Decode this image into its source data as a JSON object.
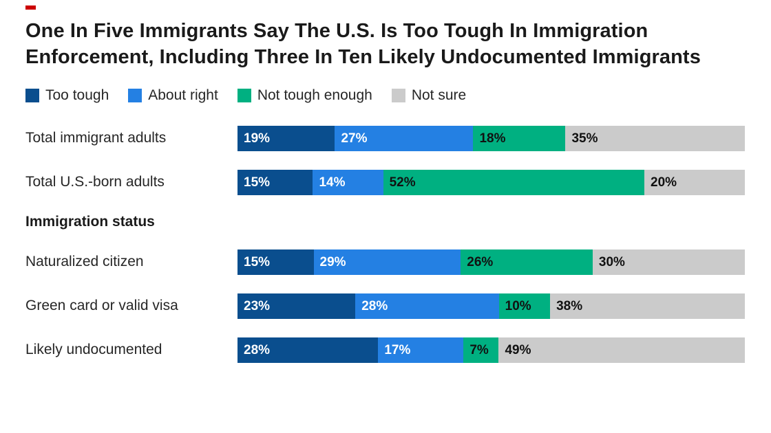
{
  "accent": {
    "color": "#cc0000"
  },
  "title": "One In Five Immigrants Say The U.S. Is Too Tough In Immigration Enforcement, Including Three In Ten Likely Undocumented Immigrants",
  "legend": [
    {
      "label": "Too tough",
      "color": "#0a4e8e"
    },
    {
      "label": "About right",
      "color": "#2480e3"
    },
    {
      "label": "Not tough enough",
      "color": "#00b081"
    },
    {
      "label": "Not sure",
      "color": "#cbcbcb"
    }
  ],
  "chart_data": {
    "type": "bar",
    "orientation": "horizontal",
    "stacked": true,
    "title": "One In Five Immigrants Say The U.S. Is Too Tough In Immigration Enforcement, Including Three In Ten Likely Undocumented Immigrants",
    "series_names": [
      "Too tough",
      "About right",
      "Not tough enough",
      "Not sure"
    ],
    "series_colors": [
      "#0a4e8e",
      "#2480e3",
      "#00b081",
      "#cbcbcb"
    ],
    "series_text_colors": [
      "#ffffff",
      "#ffffff",
      "#111111",
      "#111111"
    ],
    "value_suffix": "%",
    "rows": [
      {
        "label": "Total immigrant adults",
        "values": [
          19,
          27,
          18,
          35
        ]
      },
      {
        "label": "Total U.S.-born adults",
        "values": [
          15,
          14,
          52,
          20
        ]
      },
      {
        "section": "Immigration status"
      },
      {
        "label": "Naturalized citizen",
        "values": [
          15,
          29,
          26,
          30
        ]
      },
      {
        "label": "Green card or valid visa",
        "values": [
          23,
          28,
          10,
          38
        ]
      },
      {
        "label": "Likely undocumented",
        "values": [
          28,
          17,
          7,
          49
        ]
      }
    ]
  }
}
